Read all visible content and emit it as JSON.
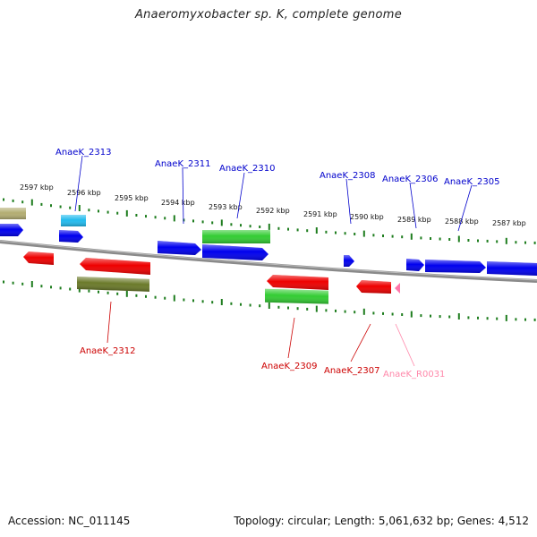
{
  "title": "Anaeromyxobacter sp. K, complete genome",
  "footer": {
    "accession": "Accession: NC_011145",
    "topology": "Topology: circular; Length: 5,061,632 bp; Genes: 4,512"
  },
  "colors": {
    "backbone": "#8a8a8a",
    "tick": "#1e7d1e",
    "forward_label": "#0000cc",
    "reverse_label": "#cc0000",
    "rna_label": "#ff88aa",
    "cds_blue": "#0000ee",
    "cds_red": "#ee0000",
    "cds_green": "#33cc33",
    "cds_cyan": "#22bbee",
    "cds_olive": "#6b7a2a",
    "cds_khaki": "#b3ad72",
    "rna_pink": "#ff77aa"
  },
  "scale_labels": [
    "2597 kbp",
    "2596 kbp",
    "2595 kbp",
    "2594 kbp",
    "2593 kbp",
    "2592 kbp",
    "2591 kbp",
    "2590 kbp",
    "2589 kbp",
    "2588 kbp",
    "2587 kbp"
  ],
  "gene_labels": [
    {
      "name": "AnaeK_2313",
      "strand": "forward"
    },
    {
      "name": "AnaeK_2311",
      "strand": "forward"
    },
    {
      "name": "AnaeK_2310",
      "strand": "forward"
    },
    {
      "name": "AnaeK_2308",
      "strand": "forward"
    },
    {
      "name": "AnaeK_2306",
      "strand": "forward"
    },
    {
      "name": "AnaeK_2305",
      "strand": "forward"
    },
    {
      "name": "AnaeK_2312",
      "strand": "reverse"
    },
    {
      "name": "AnaeK_2309",
      "strand": "reverse"
    },
    {
      "name": "AnaeK_2307",
      "strand": "reverse"
    },
    {
      "name": "AnaeK_R0031",
      "strand": "rna"
    }
  ]
}
